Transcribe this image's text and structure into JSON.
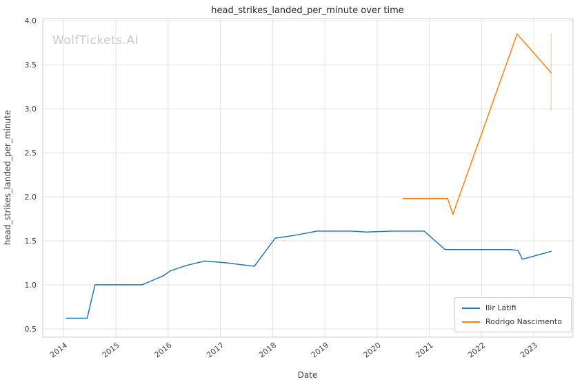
{
  "chart_data": {
    "type": "line",
    "title": "head_strikes_landed_per_minute over time",
    "xlabel": "Date",
    "ylabel": "head_strikes_landed_per_minute",
    "watermark": "WolfTickets.AI",
    "xlim": [
      2013.6,
      2023.75
    ],
    "ylim": [
      0.405,
      4.025
    ],
    "xticks": [
      2014,
      2015,
      2016,
      2017,
      2018,
      2019,
      2020,
      2021,
      2022,
      2023
    ],
    "yticks": [
      0.5,
      1.0,
      1.5,
      2.0,
      2.5,
      3.0,
      3.5,
      4.0
    ],
    "grid": true,
    "grid_color": "#e3e3e3",
    "spine_color": "#cfcfcf",
    "legend_position": "lower right",
    "series": [
      {
        "name": "Ilir Latifi",
        "color": "#1f77b4",
        "points": [
          [
            2014.05,
            0.62
          ],
          [
            2014.45,
            0.62
          ],
          [
            2014.6,
            1.0
          ],
          [
            2015.5,
            1.0
          ],
          [
            2015.9,
            1.1
          ],
          [
            2016.05,
            1.16
          ],
          [
            2016.35,
            1.22
          ],
          [
            2016.7,
            1.27
          ],
          [
            2017.1,
            1.25
          ],
          [
            2017.65,
            1.21
          ],
          [
            2018.05,
            1.53
          ],
          [
            2018.4,
            1.56
          ],
          [
            2018.85,
            1.61
          ],
          [
            2019.5,
            1.61
          ],
          [
            2019.8,
            1.6
          ],
          [
            2020.3,
            1.61
          ],
          [
            2020.9,
            1.61
          ],
          [
            2021.3,
            1.4
          ],
          [
            2022.55,
            1.4
          ],
          [
            2022.7,
            1.39
          ],
          [
            2022.78,
            1.29
          ],
          [
            2023.33,
            1.38
          ]
        ]
      },
      {
        "name": "Rodrigo Nascimento",
        "color": "#ff7f0e",
        "points": [
          [
            2020.5,
            1.98
          ],
          [
            2021.35,
            1.98
          ],
          [
            2021.45,
            1.8
          ],
          [
            2022.68,
            3.85
          ],
          [
            2023.33,
            3.41
          ]
        ]
      }
    ],
    "error_bar": {
      "x": 2023.33,
      "y_low": 2.98,
      "y_high": 3.86,
      "color": "#ff7f0e"
    }
  }
}
